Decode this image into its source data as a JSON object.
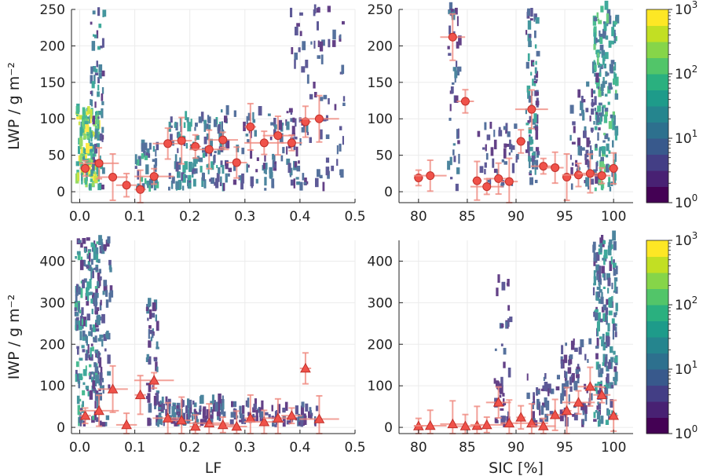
{
  "chart_data": [
    {
      "type": "scatter",
      "id": "top-left",
      "xlabel": "",
      "ylabel": "LWP / g m⁻²",
      "xlim": [
        -0.015,
        0.5
      ],
      "ylim": [
        -15,
        250
      ],
      "xticks": [
        "0.0",
        "0.1",
        "0.2",
        "0.3",
        "0.4",
        "0.5"
      ],
      "yticks": [
        "0",
        "50",
        "100",
        "150",
        "200",
        "250"
      ],
      "marker": "circle",
      "series": [
        {
          "x": [
            0.01,
            0.035,
            0.06,
            0.085,
            0.11,
            0.135,
            0.16,
            0.185,
            0.21,
            0.235,
            0.26,
            0.285,
            0.31,
            0.335,
            0.36,
            0.385,
            0.41,
            0.435
          ],
          "values": [
            32,
            39,
            20,
            9,
            3,
            21,
            66,
            70,
            62,
            58,
            71,
            40,
            89,
            67,
            77,
            67,
            96,
            100
          ]
        }
      ]
    },
    {
      "type": "scatter",
      "id": "top-right",
      "xlabel": "",
      "ylabel": "",
      "xlim": [
        78,
        102
      ],
      "ylim": [
        -15,
        250
      ],
      "xticks": [
        "80",
        "85",
        "90",
        "95",
        "100"
      ],
      "yticks": [
        "0",
        "50",
        "100",
        "150",
        "200",
        "250"
      ],
      "marker": "circle",
      "series": [
        {
          "x": [
            80,
            81.2,
            83.5,
            84.8,
            86,
            87,
            88.2,
            89.3,
            90.5,
            91.6,
            92.8,
            94,
            95.2,
            96.4,
            97.6,
            98.8,
            100
          ],
          "values": [
            19,
            22,
            212,
            124,
            15,
            7,
            18,
            14,
            69,
            113,
            35,
            33,
            20,
            23,
            25,
            22,
            32
          ]
        }
      ]
    },
    {
      "type": "scatter",
      "id": "bottom-left",
      "xlabel": "LF",
      "ylabel": "IWP / g m⁻²",
      "xlim": [
        -0.015,
        0.5
      ],
      "ylim": [
        -15,
        450
      ],
      "xticks": [
        "0.0",
        "0.1",
        "0.2",
        "0.3",
        "0.4",
        "0.5"
      ],
      "yticks": [
        "0",
        "100",
        "200",
        "300",
        "400"
      ],
      "marker": "triangle",
      "series": [
        {
          "x": [
            0.01,
            0.035,
            0.06,
            0.085,
            0.11,
            0.135,
            0.16,
            0.185,
            0.21,
            0.235,
            0.26,
            0.285,
            0.31,
            0.335,
            0.36,
            0.385,
            0.41,
            0.435
          ],
          "values": [
            28,
            40,
            92,
            6,
            78,
            113,
            22,
            17,
            2,
            10,
            6,
            2,
            22,
            13,
            22,
            28,
            142,
            20
          ]
        }
      ]
    },
    {
      "type": "scatter",
      "id": "bottom-right",
      "xlabel": "SIC [%]",
      "ylabel": "",
      "xlim": [
        78,
        102
      ],
      "ylim": [
        -15,
        450
      ],
      "xticks": [
        "80",
        "85",
        "90",
        "95",
        "100"
      ],
      "yticks": [
        "0",
        "100",
        "200",
        "300",
        "400"
      ],
      "marker": "triangle",
      "series": [
        {
          "x": [
            80,
            81.2,
            83.5,
            84.8,
            86,
            87,
            88.2,
            89.3,
            90.5,
            91.6,
            92.8,
            94,
            95.2,
            96.4,
            97.6,
            98.8,
            100
          ],
          "values": [
            3,
            4,
            8,
            3,
            4,
            6,
            60,
            10,
            24,
            10,
            3,
            30,
            40,
            60,
            98,
            78,
            28
          ]
        }
      ]
    }
  ],
  "colorbar": {
    "scale": "log",
    "range": [
      1,
      1000
    ],
    "tick_base": "10",
    "tick_exponents": [
      "0",
      "1",
      "2",
      "3"
    ],
    "colormap": "viridis"
  },
  "colors": {
    "marker_fill": "#f0524a",
    "marker_edge": "#c0302a",
    "errorbar": "#f08a80"
  }
}
